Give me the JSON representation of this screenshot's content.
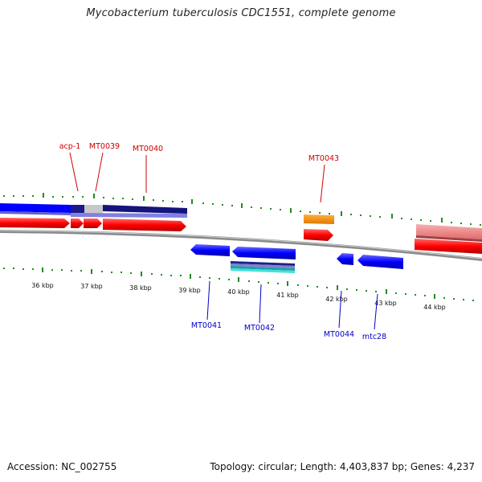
{
  "title": "Mycobacterium tuberculosis CDC1551, complete genome",
  "footer": {
    "accession": "Accession: NC_002755",
    "summary": "Topology: circular; Length: 4,403,837 bp; Genes: 4,237"
  },
  "scale_labels": [
    "36 kbp",
    "37 kbp",
    "38 kbp",
    "39 kbp",
    "40 kbp",
    "41 kbp",
    "42 kbp",
    "43 kbp",
    "44 kbp"
  ],
  "forward_labels": [
    "acp-1",
    "MT0039",
    "MT0040",
    "MT0043"
  ],
  "reverse_labels": [
    "MT0041",
    "MT0042",
    "MT0044",
    "mtc28"
  ],
  "colors": {
    "forward_label": "#cc0000",
    "reverse_label": "#0000cc",
    "tick": "#228b22",
    "cds_forward": "#ff0000",
    "cds_reverse": "#0000ff",
    "gene_forward": "#f08080",
    "orange_feature": "#ff8c00",
    "backbone": "#888888"
  }
}
